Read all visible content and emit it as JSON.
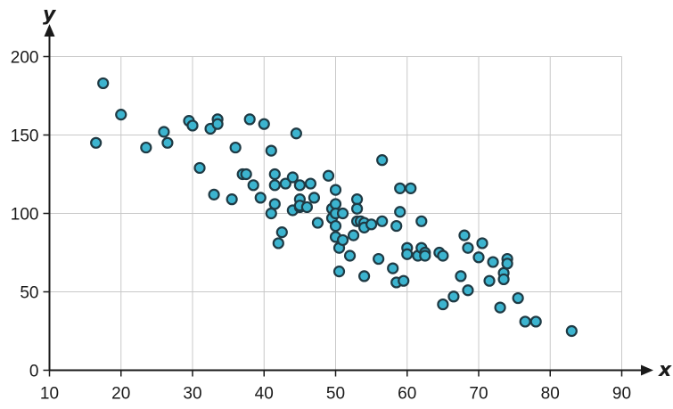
{
  "chart_data": {
    "type": "scatter",
    "xlabel": "x",
    "ylabel": "y",
    "xlim": [
      10,
      90
    ],
    "ylim": [
      0,
      200
    ],
    "xticks": [
      10,
      20,
      30,
      40,
      50,
      60,
      70,
      80,
      90
    ],
    "yticks": [
      0,
      50,
      100,
      150,
      200
    ],
    "grid": true,
    "colors": {
      "point_fill": "#3cb4cf",
      "point_stroke": "#1f3a44",
      "grid": "#c8c8c8",
      "axis": "#1a1a1a"
    },
    "points": [
      [
        16.5,
        145
      ],
      [
        17.5,
        183
      ],
      [
        20,
        163
      ],
      [
        23.5,
        142
      ],
      [
        26,
        152
      ],
      [
        26.5,
        145
      ],
      [
        29.5,
        159
      ],
      [
        30,
        156
      ],
      [
        31,
        129
      ],
      [
        32.5,
        154
      ],
      [
        33.5,
        160
      ],
      [
        33.5,
        157
      ],
      [
        33,
        112
      ],
      [
        35.5,
        109
      ],
      [
        36,
        142
      ],
      [
        37,
        125
      ],
      [
        37.5,
        125
      ],
      [
        38,
        160
      ],
      [
        38.5,
        118
      ],
      [
        39.5,
        110
      ],
      [
        40,
        157
      ],
      [
        41,
        140
      ],
      [
        41.5,
        125
      ],
      [
        41.5,
        118
      ],
      [
        41.5,
        106
      ],
      [
        41,
        100
      ],
      [
        42,
        81
      ],
      [
        43,
        119
      ],
      [
        42.5,
        88
      ],
      [
        44,
        102
      ],
      [
        44,
        123
      ],
      [
        44.5,
        151
      ],
      [
        45,
        118
      ],
      [
        45,
        109
      ],
      [
        45,
        104
      ],
      [
        45,
        105
      ],
      [
        46,
        104
      ],
      [
        46.5,
        119
      ],
      [
        47,
        110
      ],
      [
        47.5,
        94
      ],
      [
        49,
        124
      ],
      [
        49.5,
        97
      ],
      [
        49.5,
        103
      ],
      [
        50,
        106
      ],
      [
        50,
        100
      ],
      [
        50,
        115
      ],
      [
        50,
        92
      ],
      [
        50,
        85
      ],
      [
        50.5,
        78
      ],
      [
        51,
        83
      ],
      [
        51,
        100
      ],
      [
        50.5,
        63
      ],
      [
        52,
        73
      ],
      [
        52.5,
        86
      ],
      [
        53,
        109
      ],
      [
        53,
        103
      ],
      [
        53,
        95
      ],
      [
        53.5,
        95
      ],
      [
        54,
        94
      ],
      [
        54,
        91
      ],
      [
        54,
        60
      ],
      [
        55,
        93
      ],
      [
        56,
        71
      ],
      [
        56.5,
        134
      ],
      [
        56.5,
        95
      ],
      [
        58,
        65
      ],
      [
        58.5,
        56
      ],
      [
        58.5,
        92
      ],
      [
        59,
        101
      ],
      [
        59,
        116
      ],
      [
        59.5,
        57
      ],
      [
        60,
        78
      ],
      [
        60,
        74
      ],
      [
        60.5,
        116
      ],
      [
        61.5,
        73
      ],
      [
        62,
        95
      ],
      [
        62,
        78
      ],
      [
        62.5,
        75
      ],
      [
        62.5,
        73
      ],
      [
        64.5,
        75
      ],
      [
        65,
        73
      ],
      [
        65,
        42
      ],
      [
        66.5,
        47
      ],
      [
        67.5,
        60
      ],
      [
        68,
        86
      ],
      [
        68.5,
        78
      ],
      [
        68.5,
        51
      ],
      [
        70,
        72
      ],
      [
        70.5,
        81
      ],
      [
        71.5,
        57
      ],
      [
        72,
        69
      ],
      [
        73,
        40
      ],
      [
        73.5,
        62
      ],
      [
        73.5,
        58
      ],
      [
        74,
        71
      ],
      [
        74,
        68
      ],
      [
        75.5,
        46
      ],
      [
        76.5,
        31
      ],
      [
        78,
        31
      ],
      [
        83,
        25
      ]
    ]
  }
}
